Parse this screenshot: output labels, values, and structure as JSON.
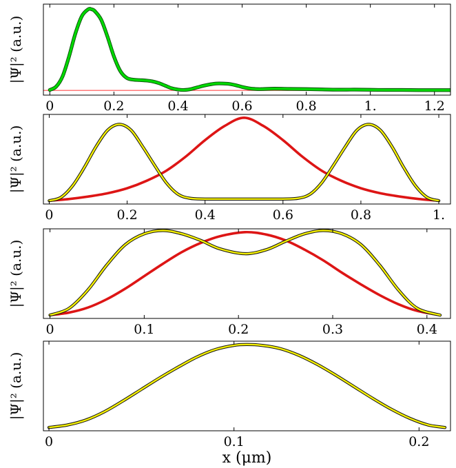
{
  "chart_data": [
    {
      "type": "line",
      "ylabel": "|Ψ|² (a.u.)",
      "xlabel": "",
      "xlim": [
        -0.02,
        1.25
      ],
      "ylim": [
        0,
        1.06
      ],
      "xticks": [
        0,
        0.2,
        0.4,
        0.6,
        0.8,
        1.0,
        1.2
      ],
      "xtick_labels": [
        "0",
        "0.2",
        "0.4",
        "0.6",
        "0.8",
        "1.",
        "1.2"
      ],
      "grid": false,
      "series": [
        {
          "color": "#ff6a6a",
          "style": "thin",
          "x": [
            -0.02,
            1.25
          ],
          "y": [
            0.055,
            0.055
          ]
        },
        {
          "color": "#00d800",
          "style": "thick",
          "x": [
            0.0,
            0.02,
            0.04,
            0.06,
            0.08,
            0.1,
            0.12,
            0.13,
            0.14,
            0.16,
            0.18,
            0.2,
            0.22,
            0.24,
            0.26,
            0.28,
            0.3,
            0.32,
            0.34,
            0.36,
            0.38,
            0.4,
            0.42,
            0.44,
            0.46,
            0.48,
            0.5,
            0.52,
            0.54,
            0.56,
            0.58,
            0.6,
            0.62,
            0.64,
            0.66,
            0.7,
            0.75,
            0.8,
            0.85,
            0.9,
            0.95,
            1.0,
            1.05,
            1.1,
            1.15,
            1.2,
            1.25
          ],
          "y": [
            0.06,
            0.1,
            0.22,
            0.45,
            0.72,
            0.92,
            1.0,
            1.0,
            0.98,
            0.88,
            0.68,
            0.45,
            0.28,
            0.2,
            0.18,
            0.175,
            0.17,
            0.16,
            0.14,
            0.11,
            0.08,
            0.065,
            0.06,
            0.07,
            0.09,
            0.11,
            0.125,
            0.135,
            0.135,
            0.13,
            0.115,
            0.095,
            0.08,
            0.072,
            0.07,
            0.075,
            0.072,
            0.07,
            0.066,
            0.063,
            0.064,
            0.062,
            0.06,
            0.06,
            0.058,
            0.058,
            0.058
          ]
        }
      ]
    },
    {
      "type": "line",
      "ylabel": "|Ψ|² (a.u.)",
      "xlabel": "",
      "xlim": [
        -0.015,
        1.03
      ],
      "ylim": [
        -0.04,
        1.04
      ],
      "xticks": [
        0,
        0.2,
        0.4,
        0.6,
        0.8,
        1.0
      ],
      "xtick_labels": [
        "0",
        "0.2",
        "0.4",
        "0.6",
        "0.8",
        "1."
      ],
      "grid": false,
      "series": [
        {
          "color": "#dd1515",
          "style": "thick",
          "x": [
            0.0,
            0.05,
            0.1,
            0.15,
            0.2,
            0.25,
            0.3,
            0.35,
            0.4,
            0.45,
            0.5,
            0.55,
            0.6,
            0.65,
            0.7,
            0.75,
            0.8,
            0.85,
            0.9,
            0.95,
            1.0
          ],
          "y": [
            0.0,
            0.02,
            0.05,
            0.09,
            0.15,
            0.24,
            0.36,
            0.53,
            0.73,
            0.9,
            1.0,
            0.9,
            0.73,
            0.53,
            0.36,
            0.24,
            0.15,
            0.09,
            0.05,
            0.02,
            0.0
          ]
        },
        {
          "color": "#f5f000",
          "style": "outlined",
          "x": [
            0.0,
            0.03,
            0.06,
            0.09,
            0.12,
            0.15,
            0.18,
            0.21,
            0.24,
            0.27,
            0.3,
            0.33,
            0.36,
            0.4,
            0.45,
            0.5,
            0.55,
            0.6,
            0.64,
            0.67,
            0.7,
            0.73,
            0.76,
            0.79,
            0.82,
            0.85,
            0.88,
            0.91,
            0.94,
            0.97,
            1.0
          ],
          "y": [
            0.0,
            0.04,
            0.18,
            0.4,
            0.65,
            0.85,
            0.92,
            0.85,
            0.65,
            0.43,
            0.22,
            0.08,
            0.03,
            0.02,
            0.02,
            0.02,
            0.02,
            0.02,
            0.03,
            0.08,
            0.22,
            0.43,
            0.65,
            0.85,
            0.92,
            0.85,
            0.65,
            0.4,
            0.18,
            0.04,
            0.0
          ]
        }
      ]
    },
    {
      "type": "line",
      "ylabel": "|Ψ|² (a.u.)",
      "xlabel": "",
      "xlim": [
        -0.007,
        0.425
      ],
      "ylim": [
        -0.04,
        1.04
      ],
      "xticks": [
        0,
        0.1,
        0.2,
        0.3,
        0.4
      ],
      "xtick_labels": [
        "0",
        "0.1",
        "0.2",
        "0.3",
        "0.4"
      ],
      "grid": false,
      "series": [
        {
          "color": "#dd1515",
          "style": "thick",
          "x": [
            0.0,
            0.02,
            0.04,
            0.06,
            0.08,
            0.1,
            0.12,
            0.14,
            0.16,
            0.18,
            0.207,
            0.23,
            0.25,
            0.27,
            0.29,
            0.31,
            0.33,
            0.35,
            0.37,
            0.39,
            0.414
          ],
          "y": [
            0.0,
            0.03,
            0.09,
            0.19,
            0.32,
            0.47,
            0.62,
            0.76,
            0.87,
            0.95,
            1.0,
            0.97,
            0.9,
            0.79,
            0.66,
            0.51,
            0.37,
            0.24,
            0.13,
            0.05,
            0.0
          ]
        },
        {
          "color": "#f5f000",
          "style": "outlined",
          "x": [
            0.0,
            0.02,
            0.04,
            0.06,
            0.08,
            0.1,
            0.12,
            0.14,
            0.16,
            0.18,
            0.207,
            0.23,
            0.25,
            0.27,
            0.29,
            0.31,
            0.33,
            0.35,
            0.37,
            0.39,
            0.414
          ],
          "y": [
            0.0,
            0.08,
            0.3,
            0.6,
            0.85,
            0.98,
            1.02,
            0.98,
            0.9,
            0.8,
            0.74,
            0.79,
            0.89,
            0.98,
            1.02,
            0.98,
            0.85,
            0.6,
            0.3,
            0.08,
            0.0
          ]
        }
      ]
    },
    {
      "type": "line",
      "ylabel": "|Ψ|² (a.u.)",
      "xlabel": "x (μm)",
      "xlim": [
        -0.003,
        0.217
      ],
      "ylim": [
        -0.04,
        1.04
      ],
      "xticks": [
        0,
        0.1,
        0.2
      ],
      "xtick_labels": [
        "0",
        "0.1",
        "0.2"
      ],
      "grid": false,
      "series": [
        {
          "color": "#dd1515",
          "style": "thick",
          "x": [
            0.0,
            0.01,
            0.02,
            0.03,
            0.04,
            0.05,
            0.06,
            0.07,
            0.08,
            0.09,
            0.1,
            0.107,
            0.115,
            0.125,
            0.135,
            0.145,
            0.155,
            0.165,
            0.175,
            0.185,
            0.195,
            0.205,
            0.214
          ],
          "y": [
            0.0,
            0.03,
            0.09,
            0.19,
            0.32,
            0.46,
            0.6,
            0.73,
            0.85,
            0.94,
            0.99,
            1.0,
            0.99,
            0.95,
            0.87,
            0.76,
            0.63,
            0.49,
            0.35,
            0.22,
            0.11,
            0.03,
            0.0
          ]
        },
        {
          "color": "#f5f000",
          "style": "outlined",
          "x": [
            0.0,
            0.01,
            0.02,
            0.03,
            0.04,
            0.05,
            0.06,
            0.07,
            0.08,
            0.09,
            0.1,
            0.107,
            0.115,
            0.125,
            0.135,
            0.145,
            0.155,
            0.165,
            0.175,
            0.185,
            0.195,
            0.205,
            0.214
          ],
          "y": [
            0.0,
            0.03,
            0.09,
            0.19,
            0.32,
            0.46,
            0.6,
            0.73,
            0.85,
            0.94,
            0.99,
            1.0,
            0.99,
            0.95,
            0.87,
            0.76,
            0.63,
            0.49,
            0.35,
            0.22,
            0.11,
            0.03,
            0.0
          ]
        }
      ]
    }
  ]
}
